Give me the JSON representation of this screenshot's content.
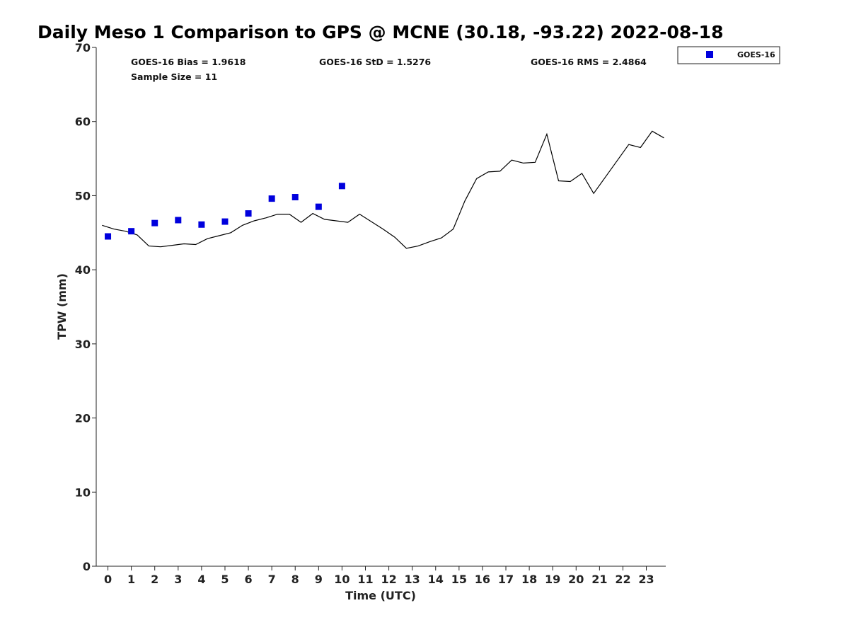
{
  "chart_data": {
    "type": "scatter",
    "title": "Daily Meso 1 Comparison to GPS @ MCNE (30.18, -93.22) 2022-08-18",
    "xlabel": "Time (UTC)",
    "ylabel": "TPW (mm)",
    "xlim": [
      -0.5,
      23.83
    ],
    "ylim": [
      0,
      70
    ],
    "x_ticks": [
      0,
      1,
      2,
      3,
      4,
      5,
      6,
      7,
      8,
      9,
      10,
      11,
      12,
      13,
      14,
      15,
      16,
      17,
      18,
      19,
      20,
      21,
      22,
      23
    ],
    "y_ticks": [
      0,
      10,
      20,
      30,
      40,
      50,
      60,
      70
    ],
    "grid": false,
    "legend_position": "outside-top-right",
    "stats": {
      "bias": "GOES-16 Bias = 1.9618",
      "std": "GOES-16 StD = 1.5276",
      "rms": "GOES-16 RMS = 2.4864",
      "sample_size": "Sample Size = 11"
    },
    "series": [
      {
        "name": "GOES-16",
        "kind": "scatter",
        "marker": "square",
        "color": "#0000dd",
        "x": [
          0,
          1,
          2,
          3,
          4,
          5,
          6,
          7,
          8,
          9,
          10
        ],
        "y": [
          44.5,
          45.2,
          46.3,
          46.7,
          46.1,
          46.5,
          47.6,
          49.6,
          49.8,
          48.5,
          51.3
        ]
      },
      {
        "kind": "line",
        "color": "#000000",
        "x": [
          -0.25,
          0.25,
          0.75,
          1.25,
          1.75,
          2.25,
          2.75,
          3.25,
          3.75,
          4.25,
          4.75,
          5.25,
          5.75,
          6.25,
          6.75,
          7.25,
          7.75,
          8.25,
          8.75,
          9.25,
          9.75,
          10.25,
          10.75,
          11.25,
          11.75,
          12.25,
          12.75,
          13.25,
          13.75,
          14.25,
          14.75,
          15.25,
          15.75,
          16.25,
          16.75,
          17.25,
          17.75,
          18.25,
          18.75,
          19.25,
          19.75,
          20.25,
          20.75,
          21.25,
          21.75,
          22.25,
          22.75,
          23.25,
          23.75
        ],
        "y": [
          46.0,
          45.5,
          45.2,
          44.7,
          43.2,
          43.1,
          43.3,
          43.5,
          43.4,
          44.2,
          44.6,
          45.0,
          46.0,
          46.6,
          47.0,
          47.5,
          47.5,
          46.4,
          47.6,
          46.8,
          46.6,
          46.4,
          47.5,
          46.5,
          45.5,
          44.4,
          42.9,
          43.2,
          43.8,
          44.3,
          45.5,
          49.3,
          52.3,
          53.2,
          53.3,
          54.8,
          54.4,
          54.5,
          58.3,
          52.0,
          51.9,
          53.0,
          50.3,
          52.5,
          54.7,
          56.9,
          56.5,
          58.7,
          57.8
        ]
      }
    ]
  }
}
